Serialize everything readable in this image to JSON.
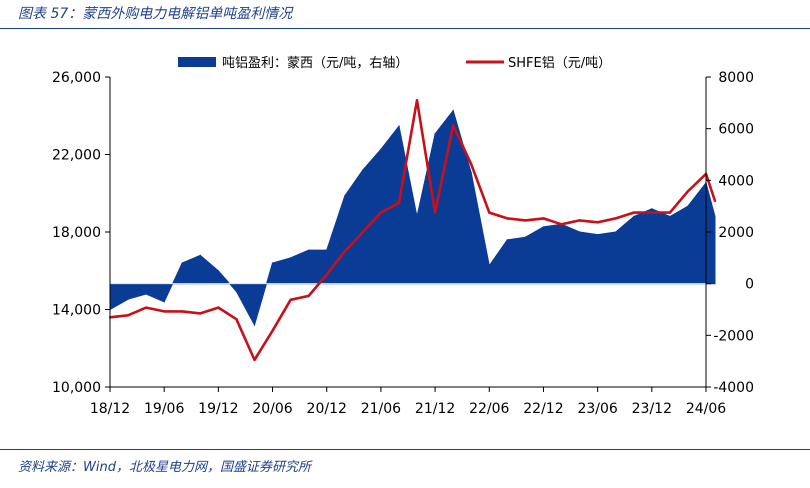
{
  "title": "图表 57：蒙西外购电力电解铝单吨盈利情况",
  "source": "资料来源：Wind，北极星电力网，国盛证券研究所",
  "colors": {
    "profit": "#0a3c96",
    "price": "#c8101a",
    "header": "#1f3f8f"
  },
  "chart_data": {
    "type": "area",
    "x_ticks": [
      "18/12",
      "19/06",
      "19/12",
      "20/06",
      "20/12",
      "21/06",
      "21/12",
      "22/06",
      "22/12",
      "23/06",
      "23/12",
      "24/06"
    ],
    "y_left": {
      "ticks": [
        "10,000",
        "14,000",
        "18,000",
        "22,000",
        "26,000"
      ],
      "range": [
        10000,
        26000
      ]
    },
    "y_right": {
      "ticks": [
        "-4000",
        "-2000",
        "0",
        "2000",
        "4000",
        "6000",
        "8000"
      ],
      "range": [
        -4000,
        8000
      ]
    },
    "legend": [
      "吨铝盈利：蒙西（元/吨，右轴）",
      "SHFE铝（元/吨）"
    ],
    "series": [
      {
        "name": "吨铝盈利：蒙西（元/吨，右轴）",
        "type": "area",
        "axis": "right",
        "x": [
          "2018-12",
          "2019-02",
          "2019-04",
          "2019-06",
          "2019-08",
          "2019-10",
          "2019-12",
          "2020-02",
          "2020-04",
          "2020-06",
          "2020-08",
          "2020-10",
          "2020-12",
          "2021-02",
          "2021-04",
          "2021-06",
          "2021-08",
          "2021-10",
          "2021-12",
          "2022-02",
          "2022-04",
          "2022-06",
          "2022-08",
          "2022-10",
          "2022-12",
          "2023-02",
          "2023-04",
          "2023-06",
          "2023-08",
          "2023-10",
          "2023-12",
          "2024-02",
          "2024-04",
          "2024-06",
          "2024-07"
        ],
        "values": [
          -1000,
          -600,
          -400,
          -700,
          800,
          1100,
          500,
          -300,
          -1600,
          800,
          1000,
          1300,
          1300,
          3400,
          4400,
          5200,
          6100,
          2600,
          5800,
          6700,
          4300,
          700,
          1700,
          1800,
          2200,
          2300,
          2000,
          1900,
          2000,
          2600,
          2900,
          2600,
          3000,
          3900,
          2600
        ]
      },
      {
        "name": "SHFE铝（元/吨）",
        "type": "line",
        "axis": "left",
        "x": [
          "2018-12",
          "2019-02",
          "2019-04",
          "2019-06",
          "2019-08",
          "2019-10",
          "2019-12",
          "2020-02",
          "2020-04",
          "2020-06",
          "2020-08",
          "2020-10",
          "2020-12",
          "2021-02",
          "2021-04",
          "2021-06",
          "2021-08",
          "2021-10",
          "2021-12",
          "2022-02",
          "2022-04",
          "2022-06",
          "2022-08",
          "2022-10",
          "2022-12",
          "2023-02",
          "2023-04",
          "2023-06",
          "2023-08",
          "2023-10",
          "2023-12",
          "2024-02",
          "2024-04",
          "2024-06",
          "2024-07"
        ],
        "values": [
          13600,
          13700,
          14100,
          13900,
          13900,
          13800,
          14100,
          13500,
          11400,
          12900,
          14500,
          14700,
          15800,
          17000,
          18000,
          19000,
          19500,
          24800,
          19000,
          23500,
          21500,
          19000,
          18700,
          18600,
          18700,
          18400,
          18600,
          18500,
          18700,
          19000,
          19000,
          19000,
          20100,
          21000,
          19600
        ]
      }
    ]
  }
}
